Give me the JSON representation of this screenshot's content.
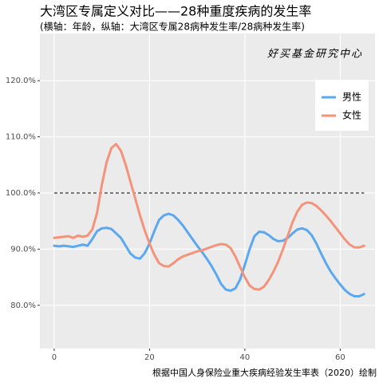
{
  "chart_data": {
    "type": "line",
    "title": "大湾区专属定义对比——28种重度疾病的发生率",
    "subtitle": "(横轴：年龄，纵轴：大湾区专属28病种发生率/28病种发生率)",
    "annotation": "好买基金研究中心",
    "caption": "根据中国人身保险业重大疾病经验发生率表（2020）绘制",
    "x": [
      0,
      1,
      2,
      3,
      4,
      5,
      6,
      7,
      8,
      9,
      10,
      11,
      12,
      13,
      14,
      15,
      16,
      17,
      18,
      19,
      20,
      21,
      22,
      23,
      24,
      25,
      26,
      27,
      28,
      29,
      30,
      31,
      32,
      33,
      34,
      35,
      36,
      37,
      38,
      39,
      40,
      41,
      42,
      43,
      44,
      45,
      46,
      47,
      48,
      49,
      50,
      51,
      52,
      53,
      54,
      55,
      56,
      57,
      58,
      59,
      60,
      61,
      62,
      63,
      64,
      65
    ],
    "series": [
      {
        "name": "男性",
        "color": "#5aa8f0",
        "values": [
          90.6,
          90.5,
          90.6,
          90.5,
          90.4,
          90.6,
          90.8,
          90.6,
          91.8,
          93.2,
          93.7,
          93.8,
          93.6,
          92.8,
          92.0,
          90.6,
          89.2,
          88.5,
          88.3,
          89.3,
          91.0,
          93.2,
          95.2,
          96.0,
          96.3,
          96.0,
          95.2,
          94.2,
          93.0,
          91.8,
          90.6,
          89.5,
          88.3,
          87.0,
          85.5,
          83.8,
          82.8,
          82.6,
          83.0,
          84.6,
          87.2,
          90.0,
          92.3,
          93.1,
          93.0,
          92.5,
          91.8,
          91.4,
          91.5,
          92.0,
          92.8,
          93.5,
          93.7,
          93.4,
          92.5,
          91.0,
          89.2,
          87.5,
          86.0,
          84.8,
          83.7,
          82.7,
          82.0,
          81.6,
          81.6,
          82.0
        ]
      },
      {
        "name": "女性",
        "color": "#f4937a",
        "values": [
          92.0,
          92.1,
          92.2,
          92.3,
          92.0,
          92.4,
          92.2,
          92.4,
          93.5,
          96.5,
          101.5,
          105.5,
          108.0,
          108.7,
          107.5,
          105.0,
          102.0,
          99.0,
          96.0,
          93.3,
          91.0,
          89.0,
          87.5,
          87.0,
          86.9,
          87.5,
          88.2,
          88.7,
          89.0,
          89.3,
          89.6,
          89.8,
          90.1,
          90.4,
          90.7,
          90.9,
          90.8,
          90.2,
          88.7,
          86.8,
          85.0,
          83.5,
          82.9,
          82.8,
          83.3,
          84.5,
          86.0,
          87.8,
          90.0,
          92.4,
          94.8,
          96.7,
          97.9,
          98.3,
          98.2,
          97.7,
          96.9,
          96.0,
          95.0,
          93.9,
          92.8,
          91.7,
          90.8,
          90.3,
          90.3,
          90.6
        ]
      }
    ],
    "hline": 100,
    "xlim": [
      -3.0,
      67.3
    ],
    "xticks": [
      0,
      20,
      40,
      60
    ],
    "ylim": [
      72.3,
      128.4
    ],
    "yticks": [
      {
        "value": 80,
        "label": "80.0%"
      },
      {
        "value": 90,
        "label": "90.0%"
      },
      {
        "value": 100,
        "label": "100.0%"
      },
      {
        "value": 110,
        "label": "110.0%"
      },
      {
        "value": 120,
        "label": "120.0%"
      }
    ],
    "grid": true,
    "legend": "top-right"
  }
}
